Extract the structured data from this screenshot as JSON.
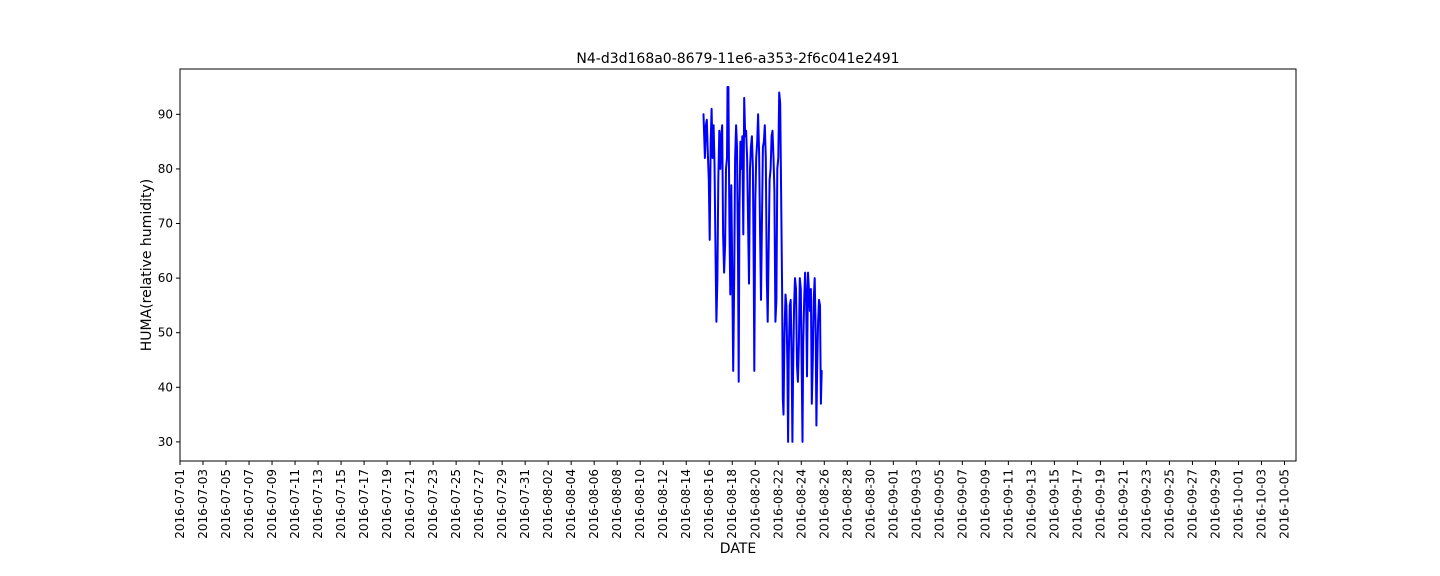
{
  "chart_data": {
    "type": "line",
    "title": "N4-d3d168a0-8679-11e6-a353-2f6c041e2491",
    "xlabel": "DATE",
    "ylabel": "HUMA(relative humidity)",
    "xlim": [
      "2016-07-01",
      "2016-10-06"
    ],
    "ylim": [
      26.5,
      98.3
    ],
    "grid": false,
    "x_ticks": [
      "2016-07-01",
      "2016-07-03",
      "2016-07-05",
      "2016-07-07",
      "2016-07-09",
      "2016-07-11",
      "2016-07-13",
      "2016-07-15",
      "2016-07-17",
      "2016-07-19",
      "2016-07-21",
      "2016-07-23",
      "2016-07-25",
      "2016-07-27",
      "2016-07-29",
      "2016-07-31",
      "2016-08-02",
      "2016-08-04",
      "2016-08-06",
      "2016-08-08",
      "2016-08-10",
      "2016-08-12",
      "2016-08-14",
      "2016-08-16",
      "2016-08-18",
      "2016-08-20",
      "2016-08-22",
      "2016-08-24",
      "2016-08-26",
      "2016-08-28",
      "2016-08-30",
      "2016-09-01",
      "2016-09-03",
      "2016-09-05",
      "2016-09-07",
      "2016-09-09",
      "2016-09-11",
      "2016-09-13",
      "2016-09-15",
      "2016-09-17",
      "2016-09-19",
      "2016-09-21",
      "2016-09-23",
      "2016-09-25",
      "2016-09-27",
      "2016-09-29",
      "2016-10-01",
      "2016-10-03",
      "2016-10-05"
    ],
    "y_ticks": [
      30,
      40,
      50,
      60,
      70,
      80,
      90
    ],
    "series": [
      {
        "color": "#0000ff",
        "points": [
          [
            "2016-08-15 12:00",
            90
          ],
          [
            "2016-08-15 13:30",
            86
          ],
          [
            "2016-08-15 15:00",
            82
          ],
          [
            "2016-08-15 17:00",
            88
          ],
          [
            "2016-08-15 19:00",
            89
          ],
          [
            "2016-08-15 21:00",
            83
          ],
          [
            "2016-08-15 23:00",
            78
          ],
          [
            "2016-08-16 01:00",
            67
          ],
          [
            "2016-08-16 03:00",
            85
          ],
          [
            "2016-08-16 05:00",
            91
          ],
          [
            "2016-08-16 07:00",
            82
          ],
          [
            "2016-08-16 09:00",
            88
          ],
          [
            "2016-08-16 11:00",
            81
          ],
          [
            "2016-08-16 13:00",
            65
          ],
          [
            "2016-08-16 15:00",
            52
          ],
          [
            "2016-08-16 17:00",
            60
          ],
          [
            "2016-08-16 19:00",
            78
          ],
          [
            "2016-08-16 21:00",
            87
          ],
          [
            "2016-08-16 23:00",
            80
          ],
          [
            "2016-08-17 01:00",
            86
          ],
          [
            "2016-08-17 03:00",
            88
          ],
          [
            "2016-08-17 05:00",
            68
          ],
          [
            "2016-08-17 07:00",
            61
          ],
          [
            "2016-08-17 09:00",
            66
          ],
          [
            "2016-08-17 11:00",
            80
          ],
          [
            "2016-08-17 13:00",
            82
          ],
          [
            "2016-08-17 14:00",
            95
          ],
          [
            "2016-08-17 15:00",
            86
          ],
          [
            "2016-08-17 16:00",
            95
          ],
          [
            "2016-08-17 18:00",
            70
          ],
          [
            "2016-08-17 20:00",
            57
          ],
          [
            "2016-08-17 22:00",
            77
          ],
          [
            "2016-08-18 00:00",
            62
          ],
          [
            "2016-08-18 02:00",
            43
          ],
          [
            "2016-08-18 04:00",
            60
          ],
          [
            "2016-08-18 06:00",
            82
          ],
          [
            "2016-08-18 08:00",
            88
          ],
          [
            "2016-08-18 10:00",
            84
          ],
          [
            "2016-08-18 12:00",
            64
          ],
          [
            "2016-08-18 13:30",
            41
          ],
          [
            "2016-08-18 15:00",
            72
          ],
          [
            "2016-08-18 17:00",
            85
          ],
          [
            "2016-08-18 19:00",
            80
          ],
          [
            "2016-08-18 21:00",
            86
          ],
          [
            "2016-08-18 23:00",
            68
          ],
          [
            "2016-08-19 01:00",
            93
          ],
          [
            "2016-08-19 03:00",
            86
          ],
          [
            "2016-08-19 05:00",
            87
          ],
          [
            "2016-08-19 07:00",
            82
          ],
          [
            "2016-08-19 09:00",
            70
          ],
          [
            "2016-08-19 11:00",
            59
          ],
          [
            "2016-08-19 13:00",
            80
          ],
          [
            "2016-08-19 15:00",
            84
          ],
          [
            "2016-08-19 17:00",
            86
          ],
          [
            "2016-08-19 19:00",
            80
          ],
          [
            "2016-08-19 21:00",
            60
          ],
          [
            "2016-08-19 22:00",
            43
          ],
          [
            "2016-08-20 00:00",
            74
          ],
          [
            "2016-08-20 02:00",
            82
          ],
          [
            "2016-08-20 04:00",
            85
          ],
          [
            "2016-08-20 06:00",
            90
          ],
          [
            "2016-08-20 08:00",
            83
          ],
          [
            "2016-08-20 10:00",
            68
          ],
          [
            "2016-08-20 12:00",
            56
          ],
          [
            "2016-08-20 14:00",
            71
          ],
          [
            "2016-08-20 16:00",
            84
          ],
          [
            "2016-08-20 18:00",
            85
          ],
          [
            "2016-08-20 20:00",
            88
          ],
          [
            "2016-08-20 22:00",
            82
          ],
          [
            "2016-08-21 00:00",
            60
          ],
          [
            "2016-08-21 02:00",
            52
          ],
          [
            "2016-08-21 04:00",
            66
          ],
          [
            "2016-08-21 06:00",
            78
          ],
          [
            "2016-08-21 08:00",
            80
          ],
          [
            "2016-08-21 10:00",
            86
          ],
          [
            "2016-08-21 12:00",
            87
          ],
          [
            "2016-08-21 14:00",
            82
          ],
          [
            "2016-08-21 16:00",
            76
          ],
          [
            "2016-08-21 18:00",
            52
          ],
          [
            "2016-08-21 20:00",
            56
          ],
          [
            "2016-08-21 22:00",
            80
          ],
          [
            "2016-08-22 00:00",
            82
          ],
          [
            "2016-08-22 02:00",
            94
          ],
          [
            "2016-08-22 04:00",
            92
          ],
          [
            "2016-08-22 06:00",
            76
          ],
          [
            "2016-08-22 08:00",
            58
          ],
          [
            "2016-08-22 09:30",
            38
          ],
          [
            "2016-08-22 11:00",
            35
          ],
          [
            "2016-08-22 13:00",
            50
          ],
          [
            "2016-08-22 15:00",
            57
          ],
          [
            "2016-08-22 17:00",
            55
          ],
          [
            "2016-08-22 19:00",
            44
          ],
          [
            "2016-08-22 20:30",
            30
          ],
          [
            "2016-08-22 22:00",
            46
          ],
          [
            "2016-08-23 00:00",
            55
          ],
          [
            "2016-08-23 02:00",
            56
          ],
          [
            "2016-08-23 04:00",
            44
          ],
          [
            "2016-08-23 05:30",
            30
          ],
          [
            "2016-08-23 07:00",
            43
          ],
          [
            "2016-08-23 09:00",
            55
          ],
          [
            "2016-08-23 11:00",
            60
          ],
          [
            "2016-08-23 13:00",
            58
          ],
          [
            "2016-08-23 15:00",
            44
          ],
          [
            "2016-08-23 17:00",
            41
          ],
          [
            "2016-08-23 19:00",
            48
          ],
          [
            "2016-08-23 21:00",
            60
          ],
          [
            "2016-08-23 23:00",
            58
          ],
          [
            "2016-08-24 01:00",
            42
          ],
          [
            "2016-08-24 02:30",
            30
          ],
          [
            "2016-08-24 04:00",
            48
          ],
          [
            "2016-08-24 06:00",
            56
          ],
          [
            "2016-08-24 08:00",
            61
          ],
          [
            "2016-08-24 10:00",
            57
          ],
          [
            "2016-08-24 12:00",
            42
          ],
          [
            "2016-08-24 14:00",
            61
          ],
          [
            "2016-08-24 16:00",
            58
          ],
          [
            "2016-08-24 18:00",
            54
          ],
          [
            "2016-08-24 20:00",
            58
          ],
          [
            "2016-08-24 22:00",
            37
          ],
          [
            "2016-08-25 00:00",
            45
          ],
          [
            "2016-08-25 02:00",
            56
          ],
          [
            "2016-08-25 04:00",
            60
          ],
          [
            "2016-08-25 06:00",
            50
          ],
          [
            "2016-08-25 07:30",
            33
          ],
          [
            "2016-08-25 09:00",
            43
          ],
          [
            "2016-08-25 11:00",
            52
          ],
          [
            "2016-08-25 13:00",
            56
          ],
          [
            "2016-08-25 15:00",
            55
          ],
          [
            "2016-08-25 17:00",
            37
          ],
          [
            "2016-08-25 18:30",
            43
          ]
        ]
      }
    ]
  }
}
